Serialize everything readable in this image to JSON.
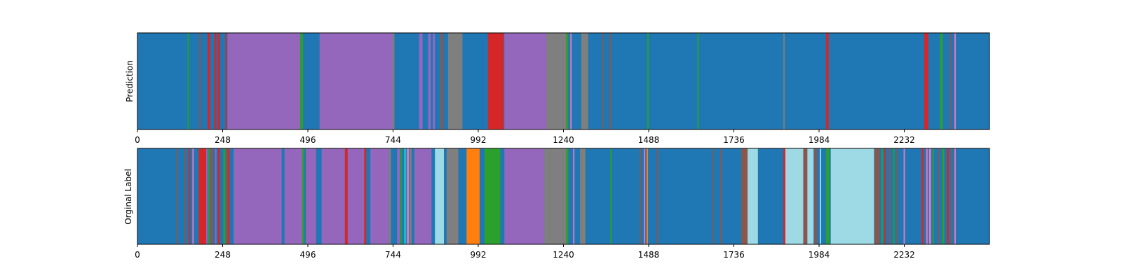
{
  "chart_data": [
    {
      "type": "heatmap",
      "ylabel": "Prediction",
      "xlim": [
        0,
        2480
      ],
      "xticks": [
        0,
        248,
        496,
        744,
        992,
        1240,
        1488,
        1736,
        1984,
        2232
      ],
      "xtick_labels": [
        "0",
        "248",
        "496",
        "744",
        "992",
        "1240",
        "1488",
        "1736",
        "1984",
        "2232"
      ],
      "yticks": [],
      "grid": false,
      "background": "#1f77b4",
      "segments": [
        {
          "start": 146,
          "end": 150,
          "color": "#2ca02c"
        },
        {
          "start": 180,
          "end": 184,
          "color": "#8c564b"
        },
        {
          "start": 204,
          "end": 212,
          "color": "#d62728"
        },
        {
          "start": 224,
          "end": 230,
          "color": "#d62728"
        },
        {
          "start": 234,
          "end": 240,
          "color": "#d62728"
        },
        {
          "start": 256,
          "end": 260,
          "color": "#d62728"
        },
        {
          "start": 262,
          "end": 266,
          "color": "#9467bd"
        },
        {
          "start": 266,
          "end": 474,
          "color": "#9467bd"
        },
        {
          "start": 474,
          "end": 482,
          "color": "#2ca02c"
        },
        {
          "start": 530,
          "end": 742,
          "color": "#9467bd"
        },
        {
          "start": 742,
          "end": 748,
          "color": "#7f7f7f"
        },
        {
          "start": 820,
          "end": 830,
          "color": "#9467bd"
        },
        {
          "start": 846,
          "end": 854,
          "color": "#9467bd"
        },
        {
          "start": 860,
          "end": 866,
          "color": "#9467bd"
        },
        {
          "start": 882,
          "end": 890,
          "color": "#8c564b"
        },
        {
          "start": 904,
          "end": 946,
          "color": "#7f7f7f"
        },
        {
          "start": 1020,
          "end": 1048,
          "color": "#d62728"
        },
        {
          "start": 1048,
          "end": 1066,
          "color": "#d62728"
        },
        {
          "start": 1068,
          "end": 1190,
          "color": "#9467bd"
        },
        {
          "start": 1190,
          "end": 1248,
          "color": "#7f7f7f"
        },
        {
          "start": 1248,
          "end": 1254,
          "color": "#2ca02c"
        },
        {
          "start": 1260,
          "end": 1264,
          "color": "#e377c2"
        },
        {
          "start": 1292,
          "end": 1312,
          "color": "#7f7f7f"
        },
        {
          "start": 1352,
          "end": 1356,
          "color": "#8c564b"
        },
        {
          "start": 1374,
          "end": 1378,
          "color": "#8c564b"
        },
        {
          "start": 1484,
          "end": 1488,
          "color": "#2ca02c"
        },
        {
          "start": 1630,
          "end": 1634,
          "color": "#2ca02c"
        },
        {
          "start": 1880,
          "end": 1884,
          "color": "#7f7f7f"
        },
        {
          "start": 2004,
          "end": 2012,
          "color": "#d62728"
        },
        {
          "start": 2290,
          "end": 2302,
          "color": "#d62728"
        },
        {
          "start": 2336,
          "end": 2344,
          "color": "#2ca02c"
        },
        {
          "start": 2364,
          "end": 2368,
          "color": "#8c564b"
        },
        {
          "start": 2378,
          "end": 2382,
          "color": "#e377c2"
        }
      ]
    },
    {
      "type": "heatmap",
      "ylabel": "Orginal Label",
      "xlim": [
        0,
        2480
      ],
      "xticks": [
        0,
        248,
        496,
        744,
        992,
        1240,
        1488,
        1736,
        1984,
        2232
      ],
      "xtick_labels": [
        "0",
        "248",
        "496",
        "744",
        "992",
        "1240",
        "1488",
        "1736",
        "1984",
        "2232"
      ],
      "yticks": [],
      "grid": false,
      "background": "#1f77b4",
      "segments": [
        {
          "start": 114,
          "end": 118,
          "color": "#8c564b"
        },
        {
          "start": 138,
          "end": 142,
          "color": "#8c564b"
        },
        {
          "start": 150,
          "end": 154,
          "color": "#d62728"
        },
        {
          "start": 160,
          "end": 164,
          "color": "#e377c2"
        },
        {
          "start": 178,
          "end": 200,
          "color": "#d62728"
        },
        {
          "start": 200,
          "end": 204,
          "color": "#9467bd"
        },
        {
          "start": 206,
          "end": 210,
          "color": "#2ca02c"
        },
        {
          "start": 212,
          "end": 220,
          "color": "#8c564b"
        },
        {
          "start": 226,
          "end": 230,
          "color": "#9467bd"
        },
        {
          "start": 234,
          "end": 240,
          "color": "#d62728"
        },
        {
          "start": 250,
          "end": 256,
          "color": "#2ca02c"
        },
        {
          "start": 258,
          "end": 262,
          "color": "#8c564b"
        },
        {
          "start": 262,
          "end": 268,
          "color": "#d62728"
        },
        {
          "start": 280,
          "end": 420,
          "color": "#9467bd"
        },
        {
          "start": 420,
          "end": 428,
          "color": "#1f77b4"
        },
        {
          "start": 428,
          "end": 480,
          "color": "#9467bd"
        },
        {
          "start": 480,
          "end": 486,
          "color": "#2ca02c"
        },
        {
          "start": 490,
          "end": 520,
          "color": "#9467bd"
        },
        {
          "start": 536,
          "end": 604,
          "color": "#9467bd"
        },
        {
          "start": 604,
          "end": 612,
          "color": "#d62728"
        },
        {
          "start": 612,
          "end": 660,
          "color": "#9467bd"
        },
        {
          "start": 660,
          "end": 666,
          "color": "#d62728"
        },
        {
          "start": 678,
          "end": 732,
          "color": "#9467bd"
        },
        {
          "start": 732,
          "end": 738,
          "color": "#7f7f7f"
        },
        {
          "start": 756,
          "end": 764,
          "color": "#9467bd"
        },
        {
          "start": 766,
          "end": 770,
          "color": "#2ca02c"
        },
        {
          "start": 776,
          "end": 782,
          "color": "#17becf"
        },
        {
          "start": 784,
          "end": 790,
          "color": "#e377c2"
        },
        {
          "start": 792,
          "end": 798,
          "color": "#7f7f7f"
        },
        {
          "start": 806,
          "end": 856,
          "color": "#9467bd"
        },
        {
          "start": 866,
          "end": 892,
          "color": "#9edae5"
        },
        {
          "start": 900,
          "end": 934,
          "color": "#7f7f7f"
        },
        {
          "start": 958,
          "end": 996,
          "color": "#ff7f0e"
        },
        {
          "start": 1010,
          "end": 1056,
          "color": "#2ca02c"
        },
        {
          "start": 1068,
          "end": 1184,
          "color": "#9467bd"
        },
        {
          "start": 1184,
          "end": 1248,
          "color": "#7f7f7f"
        },
        {
          "start": 1248,
          "end": 1254,
          "color": "#2ca02c"
        },
        {
          "start": 1268,
          "end": 1272,
          "color": "#e377c2"
        },
        {
          "start": 1288,
          "end": 1304,
          "color": "#7f7f7f"
        },
        {
          "start": 1376,
          "end": 1380,
          "color": "#2ca02c"
        },
        {
          "start": 1462,
          "end": 1466,
          "color": "#8c564b"
        },
        {
          "start": 1474,
          "end": 1478,
          "color": "#e377c2"
        },
        {
          "start": 1482,
          "end": 1486,
          "color": "#ff7f0e"
        },
        {
          "start": 1512,
          "end": 1516,
          "color": "#8c564b"
        },
        {
          "start": 1672,
          "end": 1676,
          "color": "#8c564b"
        },
        {
          "start": 1696,
          "end": 1700,
          "color": "#8c564b"
        },
        {
          "start": 1758,
          "end": 1776,
          "color": "#8c564b"
        },
        {
          "start": 1776,
          "end": 1806,
          "color": "#9edae5"
        },
        {
          "start": 1880,
          "end": 1886,
          "color": "#d62728"
        },
        {
          "start": 1886,
          "end": 1938,
          "color": "#9edae5"
        },
        {
          "start": 1938,
          "end": 1950,
          "color": "#8c564b"
        },
        {
          "start": 1950,
          "end": 1968,
          "color": "#9edae5"
        },
        {
          "start": 1970,
          "end": 1978,
          "color": "#8c564b"
        },
        {
          "start": 1986,
          "end": 1990,
          "color": "#9edae5"
        },
        {
          "start": 2004,
          "end": 2014,
          "color": "#2ca02c"
        },
        {
          "start": 2018,
          "end": 2144,
          "color": "#9edae5"
        },
        {
          "start": 2146,
          "end": 2160,
          "color": "#8c564b"
        },
        {
          "start": 2166,
          "end": 2170,
          "color": "#2ca02c"
        },
        {
          "start": 2174,
          "end": 2178,
          "color": "#d62728"
        },
        {
          "start": 2188,
          "end": 2192,
          "color": "#8c564b"
        },
        {
          "start": 2200,
          "end": 2204,
          "color": "#2ca02c"
        },
        {
          "start": 2210,
          "end": 2214,
          "color": "#8c564b"
        },
        {
          "start": 2230,
          "end": 2234,
          "color": "#e377c2"
        },
        {
          "start": 2282,
          "end": 2288,
          "color": "#d62728"
        },
        {
          "start": 2296,
          "end": 2300,
          "color": "#e377c2"
        },
        {
          "start": 2304,
          "end": 2310,
          "color": "#e377c2"
        },
        {
          "start": 2314,
          "end": 2318,
          "color": "#2ca02c"
        },
        {
          "start": 2330,
          "end": 2334,
          "color": "#8c564b"
        },
        {
          "start": 2342,
          "end": 2348,
          "color": "#2ca02c"
        },
        {
          "start": 2356,
          "end": 2362,
          "color": "#d62728"
        },
        {
          "start": 2368,
          "end": 2372,
          "color": "#8c564b"
        },
        {
          "start": 2378,
          "end": 2382,
          "color": "#e377c2"
        }
      ]
    }
  ]
}
